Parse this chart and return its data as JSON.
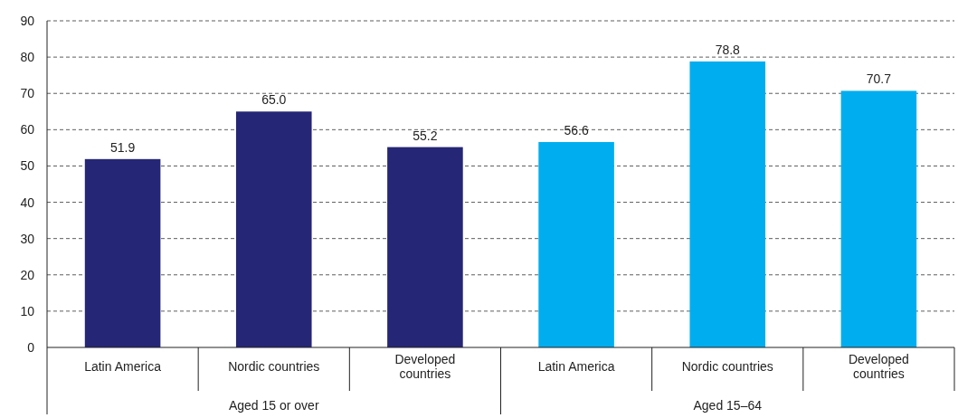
{
  "chart_data": {
    "type": "bar",
    "categories": [
      "Latin America",
      "Nordic countries",
      "Developed countries",
      "Latin America",
      "Nordic countries",
      "Developed countries"
    ],
    "series": [
      {
        "color": "#262676",
        "values": [
          51.9,
          65.0,
          55.2,
          null,
          null,
          null
        ],
        "value_labels": [
          "51.9",
          "65.0",
          "55.2",
          null,
          null,
          null
        ]
      },
      {
        "color": "#00aeef",
        "values": [
          null,
          null,
          null,
          56.6,
          78.8,
          70.7
        ],
        "value_labels": [
          null,
          null,
          null,
          "56.6",
          "78.8",
          "70.7"
        ]
      }
    ],
    "annotations": [
      "Aged 15 or over",
      "Aged 15–64"
    ],
    "ylim": [
      0,
      90
    ],
    "yticks": [
      0,
      10,
      20,
      30,
      40,
      50,
      60,
      70,
      80,
      90
    ],
    "grid": "y"
  }
}
